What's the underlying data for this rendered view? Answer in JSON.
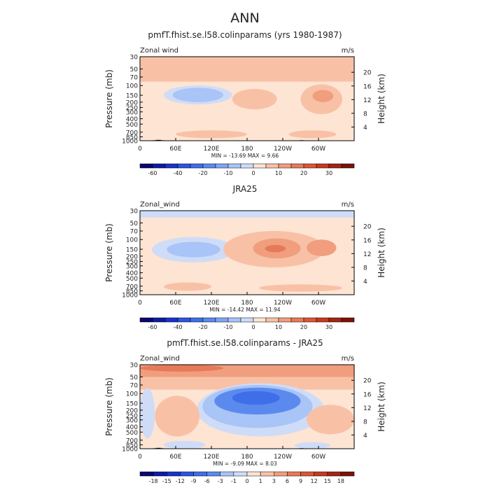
{
  "page": {
    "title": "ANN",
    "colors": {
      "land": "#000000",
      "frame": "#000000",
      "text": "#222222"
    }
  },
  "chart_data": [
    {
      "type": "contour",
      "title": "pmfT.fhist.se.l58.colinparams (yrs 1980-1987)",
      "variable": "Zonal wind",
      "units": "m/s",
      "ylabel": "Pressure (mb)",
      "ylabel_right": "Height (km)",
      "x_ticks": [
        "0",
        "60E",
        "120E",
        "180",
        "120W",
        "60W"
      ],
      "x_tick_lon": [
        0,
        60,
        120,
        180,
        240,
        300
      ],
      "x_range": [
        0,
        360
      ],
      "y_ticks": [
        "30",
        "50",
        "70",
        "100",
        "150",
        "200",
        "250",
        "300",
        "400",
        "500",
        "700",
        "850",
        "1000"
      ],
      "y_tick_values": [
        30,
        50,
        70,
        100,
        150,
        200,
        250,
        300,
        400,
        500,
        700,
        850,
        1000
      ],
      "height_ticks": [
        "20",
        "16",
        "12",
        "8",
        "4"
      ],
      "height_values": [
        20,
        16,
        12,
        8,
        4
      ],
      "y_range": [
        1000,
        30
      ],
      "stats_text": "MIN = -13.69   MAX =    9.66",
      "min": -13.69,
      "max": 9.66,
      "colorbar_labels": [
        "-60",
        "-40",
        "-20",
        "-10",
        "0",
        "10",
        "20",
        "30"
      ],
      "colorbar_levels": [
        -70,
        -60,
        -50,
        -40,
        -30,
        -20,
        -15,
        -10,
        -5,
        0,
        5,
        10,
        15,
        20,
        25,
        30,
        35
      ],
      "colorbar_colors": [
        "#08086e",
        "#0d1aa6",
        "#1833c9",
        "#2b55e0",
        "#3f6fe8",
        "#5b8aef",
        "#7fa6f3",
        "#a9c4f6",
        "#cfdcf8",
        "#fde4d3",
        "#f8c1a6",
        "#f09e7e",
        "#e67a58",
        "#dc5636",
        "#c8391f",
        "#a42513",
        "#7a1208"
      ],
      "field_background": "#fde4d3",
      "contour_regions": [
        {
          "level": "-5 to 0",
          "color": "#cfdcf8",
          "lon": [
            40,
            155
          ],
          "p": [
            220,
            100
          ]
        },
        {
          "level": "-10 to -5",
          "color": "#a9c4f6",
          "lon": [
            55,
            140
          ],
          "p": [
            200,
            110
          ]
        },
        {
          "level": "5 to 10",
          "color": "#f8c1a6",
          "lon": [
            0,
            360
          ],
          "p": [
            85,
            30
          ]
        },
        {
          "level": "5 to 10",
          "color": "#f8c1a6",
          "lon": [
            155,
            230
          ],
          "p": [
            270,
            115
          ]
        },
        {
          "level": "5 to 10",
          "color": "#f8c1a6",
          "lon": [
            270,
            340
          ],
          "p": [
            330,
            95
          ]
        },
        {
          "level": "10 to 15",
          "color": "#f09e7e",
          "lon": [
            290,
            325
          ],
          "p": [
            200,
            120
          ]
        },
        {
          "level": "5 to 10",
          "color": "#f8c1a6",
          "lon": [
            60,
            180
          ],
          "p": [
            900,
            650
          ]
        },
        {
          "level": "5 to 10",
          "color": "#f8c1a6",
          "lon": [
            250,
            330
          ],
          "p": [
            900,
            650
          ]
        }
      ],
      "has_land": true
    },
    {
      "type": "contour",
      "title": "JRA25",
      "variable": "Zonal_wind",
      "units": "m/s",
      "ylabel": "Pressure (mb)",
      "ylabel_right": "Height (km)",
      "x_ticks": [
        "0",
        "60E",
        "120E",
        "180",
        "120W",
        "60W"
      ],
      "x_tick_lon": [
        0,
        60,
        120,
        180,
        240,
        300
      ],
      "x_range": [
        0,
        360
      ],
      "y_ticks": [
        "30",
        "50",
        "70",
        "100",
        "150",
        "200",
        "250",
        "300",
        "400",
        "500",
        "700",
        "850",
        "1000"
      ],
      "y_tick_values": [
        30,
        50,
        70,
        100,
        150,
        200,
        250,
        300,
        400,
        500,
        700,
        850,
        1000
      ],
      "height_ticks": [
        "20",
        "16",
        "12",
        "8",
        "4"
      ],
      "height_values": [
        20,
        16,
        12,
        8,
        4
      ],
      "y_range": [
        1000,
        30
      ],
      "stats_text": "MIN = -14.42   MAX =   11.94",
      "min": -14.42,
      "max": 11.94,
      "colorbar_labels": [
        "-60",
        "-40",
        "-20",
        "-10",
        "0",
        "10",
        "20",
        "30"
      ],
      "colorbar_levels": [
        -70,
        -60,
        -50,
        -40,
        -30,
        -20,
        -15,
        -10,
        -5,
        0,
        5,
        10,
        15,
        20,
        25,
        30,
        35
      ],
      "colorbar_colors": [
        "#08086e",
        "#0d1aa6",
        "#1833c9",
        "#2b55e0",
        "#3f6fe8",
        "#5b8aef",
        "#7fa6f3",
        "#a9c4f6",
        "#cfdcf8",
        "#fde4d3",
        "#f8c1a6",
        "#f09e7e",
        "#e67a58",
        "#dc5636",
        "#c8391f",
        "#a42513",
        "#7a1208"
      ],
      "field_background": "#fde4d3",
      "contour_regions": [
        {
          "level": "-5 to 0",
          "color": "#cfdcf8",
          "lon": [
            0,
            360
          ],
          "p": [
            40,
            30
          ]
        },
        {
          "level": "-5 to 0",
          "color": "#cfdcf8",
          "lon": [
            20,
            160
          ],
          "p": [
            260,
            90
          ]
        },
        {
          "level": "-10 to -5",
          "color": "#a9c4f6",
          "lon": [
            45,
            135
          ],
          "p": [
            210,
            110
          ]
        },
        {
          "level": "5 to 10",
          "color": "#f8c1a6",
          "lon": [
            140,
            310
          ],
          "p": [
            320,
            70
          ]
        },
        {
          "level": "10 to 15",
          "color": "#f09e7e",
          "lon": [
            190,
            270
          ],
          "p": [
            220,
            95
          ]
        },
        {
          "level": "15 to 20",
          "color": "#e67a58",
          "lon": [
            210,
            245
          ],
          "p": [
            170,
            125
          ]
        },
        {
          "level": "10 to 15",
          "color": "#f09e7e",
          "lon": [
            280,
            330
          ],
          "p": [
            200,
            100
          ]
        },
        {
          "level": "5 to 10",
          "color": "#f8c1a6",
          "lon": [
            40,
            120
          ],
          "p": [
            850,
            600
          ]
        },
        {
          "level": "5 to 10",
          "color": "#f8c1a6",
          "lon": [
            200,
            340
          ],
          "p": [
            880,
            650
          ]
        }
      ],
      "has_land": false
    },
    {
      "type": "contour",
      "title": "pmfT.fhist.se.l58.colinparams - JRA25",
      "variable": "Zonal_wind",
      "units": "m/s",
      "ylabel": "Pressure (mb)",
      "ylabel_right": "Height (km)",
      "x_ticks": [
        "0",
        "60E",
        "120E",
        "180",
        "120W",
        "60W"
      ],
      "x_tick_lon": [
        0,
        60,
        120,
        180,
        240,
        300
      ],
      "x_range": [
        0,
        360
      ],
      "y_ticks": [
        "30",
        "50",
        "70",
        "100",
        "150",
        "200",
        "250",
        "300",
        "400",
        "500",
        "700",
        "850",
        "1000"
      ],
      "y_tick_values": [
        30,
        50,
        70,
        100,
        150,
        200,
        250,
        300,
        400,
        500,
        700,
        850,
        1000
      ],
      "height_ticks": [
        "20",
        "16",
        "12",
        "8",
        "4"
      ],
      "height_values": [
        20,
        16,
        12,
        8,
        4
      ],
      "y_range": [
        1000,
        30
      ],
      "stats_text": "MIN = -9.09   MAX =    8.03",
      "min": -9.09,
      "max": 8.03,
      "colorbar_labels": [
        "-18",
        "-15",
        "-12",
        "-9",
        "-6",
        "-3",
        "-1",
        "0",
        "1",
        "3",
        "6",
        "9",
        "12",
        "15",
        "18"
      ],
      "colorbar_levels": [
        -21,
        -18,
        -15,
        -12,
        -9,
        -6,
        -3,
        -1,
        0,
        1,
        3,
        6,
        9,
        12,
        15,
        18,
        21
      ],
      "colorbar_colors": [
        "#08086e",
        "#0d1aa6",
        "#1833c9",
        "#2b55e0",
        "#3f6fe8",
        "#5b8aef",
        "#a9c4f6",
        "#cfdcf8",
        "#fde4d3",
        "#f8c1a6",
        "#f09e7e",
        "#e67a58",
        "#dc5636",
        "#c8391f",
        "#a42513",
        "#7a1208"
      ],
      "field_background": "#fde4d3",
      "contour_regions": [
        {
          "level": "1 to 3",
          "color": "#f8c1a6",
          "lon": [
            0,
            360
          ],
          "p": [
            85,
            30
          ]
        },
        {
          "level": "3 to 6",
          "color": "#f09e7e",
          "lon": [
            0,
            360
          ],
          "p": [
            50,
            30
          ]
        },
        {
          "level": "6 to 9",
          "color": "#e67a58",
          "lon": [
            0,
            140
          ],
          "p": [
            40,
            30
          ]
        },
        {
          "level": "-1 to 0",
          "color": "#cfdcf8",
          "lon": [
            0,
            25
          ],
          "p": [
            650,
            80
          ]
        },
        {
          "level": "-1 to 0",
          "color": "#cfdcf8",
          "lon": [
            95,
            310
          ],
          "p": [
            600,
            65
          ]
        },
        {
          "level": "-3 to -1",
          "color": "#a9c4f6",
          "lon": [
            105,
            290
          ],
          "p": [
            420,
            70
          ]
        },
        {
          "level": "-6 to -3",
          "color": "#5b8aef",
          "lon": [
            125,
            270
          ],
          "p": [
            240,
            78
          ]
        },
        {
          "level": "-9 to -6",
          "color": "#3f6fe8",
          "lon": [
            155,
            235
          ],
          "p": [
            160,
            90
          ]
        },
        {
          "level": "1 to 3",
          "color": "#f8c1a6",
          "lon": [
            25,
            100
          ],
          "p": [
            600,
            110
          ]
        },
        {
          "level": "1 to 3",
          "color": "#f8c1a6",
          "lon": [
            280,
            360
          ],
          "p": [
            550,
            160
          ]
        },
        {
          "level": "-1 to 0",
          "color": "#cfdcf8",
          "lon": [
            40,
            110
          ],
          "p": [
            1000,
            720
          ]
        },
        {
          "level": "-1 to 0",
          "color": "#cfdcf8",
          "lon": [
            260,
            320
          ],
          "p": [
            1000,
            760
          ]
        }
      ],
      "has_land": true
    }
  ]
}
